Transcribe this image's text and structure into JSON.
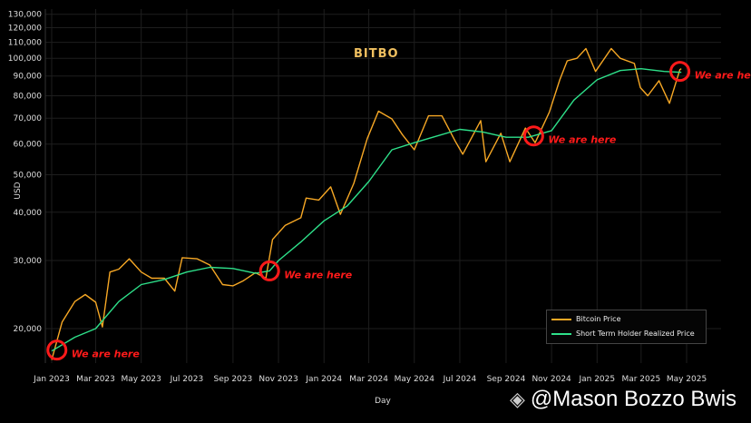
{
  "logo": "BITBO",
  "watermark": "@Mason Bozzo Bwis",
  "colors": {
    "price": "#f7a825",
    "sth": "#2ee08a",
    "marker": "#ff1a1a"
  },
  "chart_data": {
    "type": "line",
    "title": "",
    "xlabel": "Day",
    "ylabel": "USD",
    "yscale": "log",
    "ylim": [
      15000,
      135000
    ],
    "xlim": [
      "2022-12-24",
      "2025-06-15"
    ],
    "grid": true,
    "legend_position": "bottom-right",
    "yticks": [
      20000,
      30000,
      40000,
      50000,
      60000,
      70000,
      80000,
      90000,
      100000,
      110000,
      120000,
      130000
    ],
    "ytick_labels": [
      "20,000",
      "30,000",
      "40,000",
      "50,000",
      "60,000",
      "70,000",
      "80,000",
      "90,000",
      "100,000",
      "110,000",
      "120,000",
      "130,000"
    ],
    "xticks": [
      "2023-01-01",
      "2023-03-01",
      "2023-05-01",
      "2023-07-01",
      "2023-09-01",
      "2023-11-01",
      "2024-01-01",
      "2024-03-01",
      "2024-05-01",
      "2024-07-01",
      "2024-09-01",
      "2024-11-01",
      "2025-01-01",
      "2025-03-01",
      "2025-05-01"
    ],
    "xtick_labels": [
      "Jan 2023",
      "Mar 2023",
      "May 2023",
      "Jul 2023",
      "Sep 2023",
      "Nov 2023",
      "Jan 2024",
      "Mar 2024",
      "May 2024",
      "Jul 2024",
      "Sep 2024",
      "Nov 2024",
      "Jan 2025",
      "Mar 2025",
      "May 2025"
    ],
    "series": [
      {
        "name": "Bitcoin Price",
        "color": "#f7a825",
        "points": [
          [
            "2023-01-01",
            16600
          ],
          [
            "2023-01-15",
            20800
          ],
          [
            "2023-02-01",
            23500
          ],
          [
            "2023-02-15",
            24500
          ],
          [
            "2023-03-01",
            23400
          ],
          [
            "2023-03-10",
            20200
          ],
          [
            "2023-03-20",
            28000
          ],
          [
            "2023-04-01",
            28500
          ],
          [
            "2023-04-15",
            30300
          ],
          [
            "2023-05-01",
            28000
          ],
          [
            "2023-05-15",
            27000
          ],
          [
            "2023-06-01",
            27000
          ],
          [
            "2023-06-15",
            25000
          ],
          [
            "2023-06-25",
            30500
          ],
          [
            "2023-07-15",
            30300
          ],
          [
            "2023-08-01",
            29200
          ],
          [
            "2023-08-18",
            26000
          ],
          [
            "2023-09-01",
            25800
          ],
          [
            "2023-09-15",
            26600
          ],
          [
            "2023-10-01",
            27900
          ],
          [
            "2023-10-15",
            27000
          ],
          [
            "2023-10-24",
            34000
          ],
          [
            "2023-11-10",
            37000
          ],
          [
            "2023-12-01",
            38700
          ],
          [
            "2023-12-08",
            43500
          ],
          [
            "2023-12-25",
            43000
          ],
          [
            "2024-01-10",
            46500
          ],
          [
            "2024-01-23",
            39500
          ],
          [
            "2024-02-10",
            47500
          ],
          [
            "2024-02-28",
            62000
          ],
          [
            "2024-03-14",
            73000
          ],
          [
            "2024-04-01",
            69700
          ],
          [
            "2024-04-15",
            63500
          ],
          [
            "2024-05-01",
            58000
          ],
          [
            "2024-05-20",
            71000
          ],
          [
            "2024-06-07",
            71000
          ],
          [
            "2024-06-25",
            61000
          ],
          [
            "2024-07-05",
            56500
          ],
          [
            "2024-07-29",
            69000
          ],
          [
            "2024-08-05",
            54000
          ],
          [
            "2024-08-25",
            64000
          ],
          [
            "2024-09-06",
            54000
          ],
          [
            "2024-09-27",
            66000
          ],
          [
            "2024-10-10",
            60500
          ],
          [
            "2024-10-29",
            72500
          ],
          [
            "2024-11-12",
            88000
          ],
          [
            "2024-11-22",
            98500
          ],
          [
            "2024-12-05",
            100000
          ],
          [
            "2024-12-17",
            106000
          ],
          [
            "2024-12-30",
            92500
          ],
          [
            "2025-01-20",
            106000
          ],
          [
            "2025-02-01",
            100000
          ],
          [
            "2025-02-20",
            97000
          ],
          [
            "2025-02-28",
            84000
          ],
          [
            "2025-03-10",
            80000
          ],
          [
            "2025-03-25",
            87500
          ],
          [
            "2025-04-08",
            76500
          ],
          [
            "2025-04-22",
            93500
          ],
          [
            "2025-04-24",
            94000
          ]
        ]
      },
      {
        "name": "Short Term Holder Realized Price",
        "color": "#2ee08a",
        "points": [
          [
            "2023-01-01",
            17500
          ],
          [
            "2023-02-01",
            19000
          ],
          [
            "2023-03-01",
            20000
          ],
          [
            "2023-04-01",
            23500
          ],
          [
            "2023-05-01",
            26000
          ],
          [
            "2023-06-01",
            26800
          ],
          [
            "2023-07-01",
            28000
          ],
          [
            "2023-08-01",
            28800
          ],
          [
            "2023-09-01",
            28600
          ],
          [
            "2023-10-01",
            27800
          ],
          [
            "2023-10-20",
            28200
          ],
          [
            "2023-11-01",
            30000
          ],
          [
            "2023-12-01",
            33500
          ],
          [
            "2024-01-01",
            38000
          ],
          [
            "2024-02-01",
            41500
          ],
          [
            "2024-03-01",
            48000
          ],
          [
            "2024-04-01",
            58000
          ],
          [
            "2024-05-01",
            60500
          ],
          [
            "2024-06-01",
            63000
          ],
          [
            "2024-07-01",
            65500
          ],
          [
            "2024-08-01",
            64500
          ],
          [
            "2024-09-01",
            62500
          ],
          [
            "2024-10-01",
            62500
          ],
          [
            "2024-11-01",
            65000
          ],
          [
            "2024-12-01",
            78000
          ],
          [
            "2025-01-01",
            88000
          ],
          [
            "2025-02-01",
            93000
          ],
          [
            "2025-03-01",
            94000
          ],
          [
            "2025-04-01",
            92500
          ],
          [
            "2025-04-24",
            92000
          ]
        ]
      }
    ],
    "annotations": [
      {
        "date": "2023-01-08",
        "value": 17600,
        "text": "We are here"
      },
      {
        "date": "2023-10-20",
        "value": 28200,
        "text": "We are here"
      },
      {
        "date": "2024-10-08",
        "value": 63000,
        "text": "We are here"
      },
      {
        "date": "2025-04-22",
        "value": 92500,
        "text": "We are here"
      }
    ]
  }
}
